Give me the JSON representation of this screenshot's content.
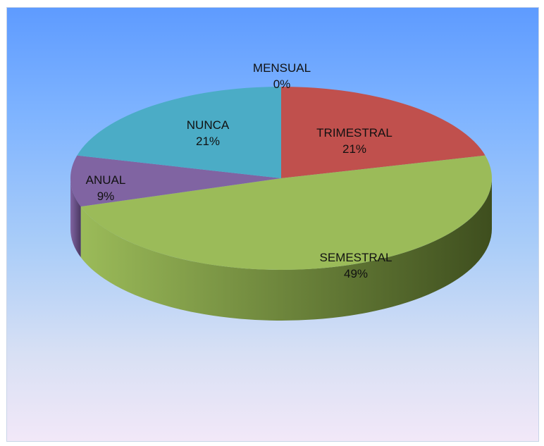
{
  "chart_data": {
    "type": "pie",
    "title": "",
    "three_d": true,
    "categories": [
      "MENSUAL",
      "TRIMESTRAL",
      "SEMESTRAL",
      "ANUAL",
      "NUNCA"
    ],
    "values": [
      0,
      21,
      49,
      9,
      21
    ],
    "labels": [
      {
        "name": "MENSUAL",
        "pct": "0%"
      },
      {
        "name": "TRIMESTRAL",
        "pct": "21%"
      },
      {
        "name": "SEMESTRAL",
        "pct": "49%"
      },
      {
        "name": "ANUAL",
        "pct": "9%"
      },
      {
        "name": "NUNCA",
        "pct": "21%"
      }
    ],
    "colors": [
      "#4f81bd",
      "#c0504d",
      "#9bbb59",
      "#8064a2",
      "#4bacc6"
    ],
    "side_colors": [
      "#2f4d73",
      "#7a302e",
      "#3e4e1e",
      "#4b3862",
      "#2c6a7b"
    ],
    "background_gradient": [
      "#5e9bff",
      "#f2e8f8"
    ],
    "legend": "none"
  }
}
